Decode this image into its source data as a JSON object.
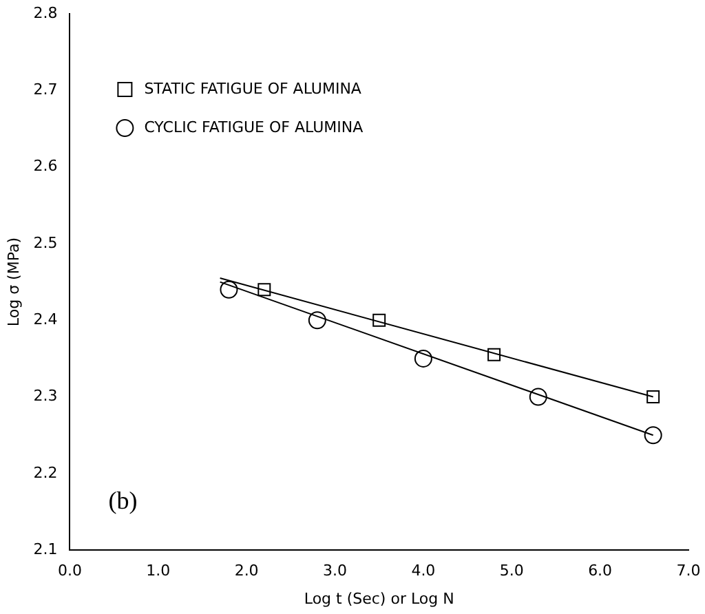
{
  "chart_data": {
    "type": "scatter",
    "xlabel": "Log t (Sec) or Log N",
    "ylabel": "Log σ (MPa)",
    "xlim": [
      0,
      7
    ],
    "xticks": [
      {
        "value": 0,
        "label": "0.0"
      },
      {
        "value": 1,
        "label": "1.0"
      },
      {
        "value": 2,
        "label": "2.0"
      },
      {
        "value": 3,
        "label": "3.0"
      },
      {
        "value": 4,
        "label": "4.0"
      },
      {
        "value": 5,
        "label": "5.0"
      },
      {
        "value": 6,
        "label": "6.0"
      },
      {
        "value": 7,
        "label": "7.0"
      }
    ],
    "ylim": [
      2.1,
      2.8
    ],
    "yticks": [
      2.1,
      2.2,
      2.3,
      2.4,
      2.5,
      2.6,
      2.7,
      2.8
    ],
    "grid": false,
    "legend": "top left",
    "annotations": [
      "(b)"
    ],
    "series": [
      {
        "name": "STATIC FATIGUE OF ALUMINA",
        "color": "#000000",
        "marker": "square",
        "x": [
          2.2,
          3.5,
          4.8,
          6.6
        ],
        "values": [
          2.44,
          2.4,
          2.355,
          2.3
        ]
      },
      {
        "name": "CYCLIC FATIGUE OF ALUMINA",
        "color": "#000000",
        "marker": "circle",
        "x": [
          1.8,
          2.8,
          4.0,
          5.3,
          6.6
        ],
        "values": [
          2.44,
          2.4,
          2.35,
          2.3,
          2.25
        ]
      },
      {
        "type": "line",
        "color": "#000000",
        "marker": "none",
        "x": [
          1.7,
          6.6
        ],
        "values": [
          2.455,
          2.3
        ]
      },
      {
        "type": "line",
        "color": "#000000",
        "marker": "none",
        "x": [
          1.7,
          6.6
        ],
        "values": [
          2.45,
          2.25
        ]
      }
    ]
  }
}
